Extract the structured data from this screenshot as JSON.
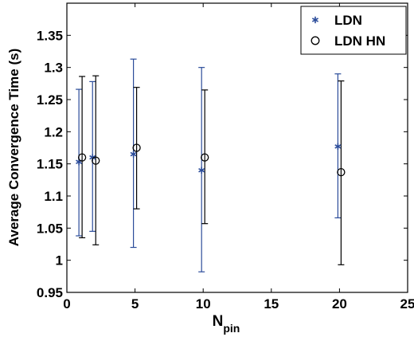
{
  "chart_data": {
    "type": "scatter",
    "title": "",
    "xlabel": "N",
    "xlabel_subscript": "pin",
    "ylabel": "Average Convergence Time (s)",
    "xlim": [
      0,
      25
    ],
    "ylim": [
      0.95,
      1.4
    ],
    "xticks": [
      0,
      5,
      10,
      15,
      20,
      25
    ],
    "xtick_labels": [
      "0",
      "5",
      "10",
      "15",
      "20",
      "25"
    ],
    "yticks": [
      0.95,
      1.0,
      1.05,
      1.1,
      1.15,
      1.2,
      1.25,
      1.3,
      1.35
    ],
    "ytick_labels": [
      "0.95",
      "1",
      "1.05",
      "1.1",
      "1.15",
      "1.2",
      "1.25",
      "1.3",
      "1.35"
    ],
    "grid": false,
    "legend_position": "top-right",
    "series": [
      {
        "name": "LDN",
        "marker": "asterisk",
        "color": "#2b4c9a",
        "x": [
          1,
          2,
          5,
          10,
          20
        ],
        "y": [
          1.153,
          1.16,
          1.165,
          1.14,
          1.177
        ],
        "err_low": [
          1.038,
          1.045,
          1.02,
          0.982,
          1.066
        ],
        "err_high": [
          1.266,
          1.278,
          1.313,
          1.3,
          1.29
        ]
      },
      {
        "name": "LDN HN",
        "marker": "circle",
        "color": "#000000",
        "x": [
          1,
          2,
          5,
          10,
          20
        ],
        "y": [
          1.16,
          1.155,
          1.175,
          1.16,
          1.137
        ],
        "err_low": [
          1.035,
          1.024,
          1.08,
          1.057,
          0.993
        ],
        "err_high": [
          1.286,
          1.287,
          1.269,
          1.265,
          1.279
        ]
      }
    ]
  }
}
